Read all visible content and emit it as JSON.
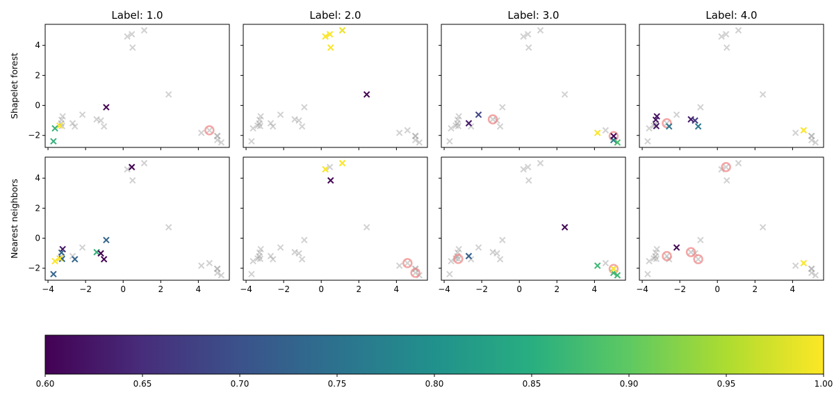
{
  "chart_data": {
    "type": "scatter",
    "layout": "2 rows x 4 columns, shared axes",
    "column_titles": [
      "Label: 1.0",
      "Label: 2.0",
      "Label: 3.0",
      "Label: 4.0"
    ],
    "row_labels": [
      "Shapelet forest",
      "Nearest neighbors"
    ],
    "xlim": [
      -4.15,
      5.65
    ],
    "ylim": [
      -2.8,
      5.4
    ],
    "xticks": [
      -4,
      -2,
      0,
      2,
      4
    ],
    "yticks": [
      -2,
      0,
      2,
      4
    ],
    "grid": false,
    "background_marker": "x",
    "background_color": "#999999",
    "highlight_circle_color": "#f08080",
    "points": [
      [
        0.22,
        4.59
      ],
      [
        0.46,
        4.74
      ],
      [
        1.12,
        5.0
      ],
      [
        0.5,
        3.85
      ],
      [
        2.42,
        0.73
      ],
      [
        -0.9,
        -0.12
      ],
      [
        -2.17,
        -0.62
      ],
      [
        -3.22,
        -0.73
      ],
      [
        -3.28,
        -0.96
      ],
      [
        -3.25,
        -1.38
      ],
      [
        -3.38,
        -1.35
      ],
      [
        -3.63,
        -1.53
      ],
      [
        -3.71,
        -2.39
      ],
      [
        -2.69,
        -1.19
      ],
      [
        -2.57,
        -1.4
      ],
      [
        -1.41,
        -0.93
      ],
      [
        -1.19,
        -1.01
      ],
      [
        -1.02,
        -1.4
      ],
      [
        4.16,
        -1.83
      ],
      [
        4.59,
        -1.66
      ],
      [
        5.02,
        -2.05
      ],
      [
        5.01,
        -2.31
      ],
      [
        5.22,
        -2.47
      ],
      [
        -3.3,
        -1.2
      ],
      [
        5.0,
        -2.03
      ]
    ],
    "panels": [
      {
        "row": 0,
        "col": 0,
        "colored": [
          [
            5,
            0.6
          ],
          [
            11,
            0.86
          ],
          [
            12,
            0.86
          ],
          [
            10,
            1.0
          ]
        ],
        "circled": [
          19
        ]
      },
      {
        "row": 0,
        "col": 1,
        "colored": [
          [
            0,
            1.0
          ],
          [
            1,
            1.0
          ],
          [
            2,
            0.99
          ],
          [
            3,
            1.0
          ],
          [
            4,
            0.6
          ]
        ],
        "circled": []
      },
      {
        "row": 0,
        "col": 2,
        "colored": [
          [
            13,
            0.63
          ],
          [
            6,
            0.68
          ],
          [
            18,
            1.0
          ],
          [
            21,
            0.77
          ],
          [
            22,
            0.88
          ],
          [
            20,
            0.6
          ]
        ],
        "circled": [
          15,
          20
        ]
      },
      {
        "row": 0,
        "col": 3,
        "colored": [
          [
            7,
            0.62
          ],
          [
            8,
            0.62
          ],
          [
            9,
            0.62
          ],
          [
            14,
            0.76
          ],
          [
            15,
            0.63
          ],
          [
            16,
            0.67
          ],
          [
            17,
            0.76
          ],
          [
            19,
            1.0
          ]
        ],
        "circled": [
          13
        ]
      },
      {
        "row": 1,
        "col": 0,
        "colored": [
          [
            1,
            0.6
          ],
          [
            5,
            0.73
          ],
          [
            7,
            0.62
          ],
          [
            8,
            0.73
          ],
          [
            9,
            0.73
          ],
          [
            12,
            0.73
          ],
          [
            14,
            0.73
          ],
          [
            15,
            0.86
          ],
          [
            16,
            0.6
          ],
          [
            17,
            0.6
          ],
          [
            10,
            1.0
          ],
          [
            11,
            1.0
          ]
        ],
        "circled": []
      },
      {
        "row": 1,
        "col": 1,
        "colored": [
          [
            0,
            1.0
          ],
          [
            2,
            1.0
          ],
          [
            3,
            0.6
          ]
        ],
        "circled": [
          19,
          21
        ]
      },
      {
        "row": 1,
        "col": 2,
        "colored": [
          [
            13,
            0.72
          ],
          [
            4,
            0.6
          ],
          [
            18,
            0.87
          ],
          [
            21,
            0.87
          ],
          [
            22,
            0.87
          ],
          [
            20,
            1.0
          ]
        ],
        "circled": [
          9,
          20
        ]
      },
      {
        "row": 1,
        "col": 3,
        "colored": [
          [
            6,
            0.6
          ],
          [
            19,
            1.0
          ]
        ],
        "circled": [
          1,
          13,
          15,
          17
        ]
      }
    ],
    "colorbar": {
      "colormap": "viridis",
      "range": [
        0.6,
        1.0
      ],
      "ticks": [
        "0.60",
        "0.65",
        "0.70",
        "0.75",
        "0.80",
        "0.85",
        "0.90",
        "0.95",
        "1.00"
      ],
      "orientation": "horizontal"
    }
  }
}
